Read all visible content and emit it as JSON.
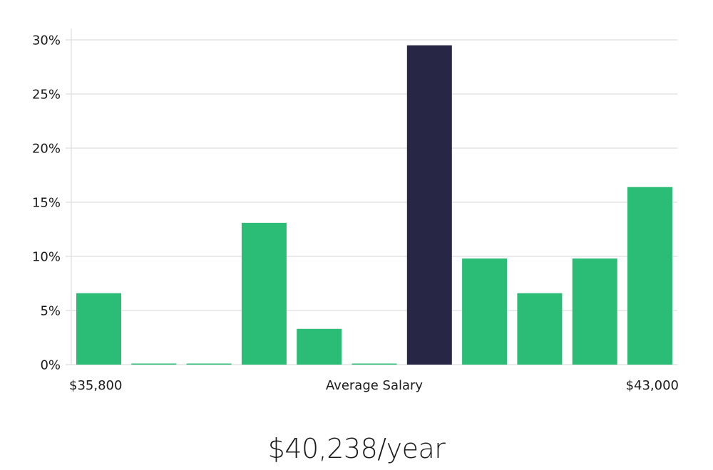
{
  "chart_data": {
    "type": "bar",
    "title": "",
    "xlabel": "Average Salary",
    "ylabel": "",
    "x_min_label": "$35,800",
    "x_max_label": "$43,000",
    "ylim": [
      0,
      31
    ],
    "yticks": [
      0,
      5,
      10,
      15,
      20,
      25,
      30
    ],
    "ytick_labels": [
      "0%",
      "5%",
      "10%",
      "15%",
      "20%",
      "25%",
      "30%"
    ],
    "grid": true,
    "values": [
      6.6,
      0.1,
      0.1,
      13.1,
      3.3,
      0.1,
      29.5,
      9.8,
      6.6,
      9.8,
      16.4
    ],
    "highlight_index": 6,
    "colors": {
      "bar": "#2bbd76",
      "highlight": "#282645"
    }
  },
  "summary": {
    "salary_text": "$40,238/year"
  }
}
